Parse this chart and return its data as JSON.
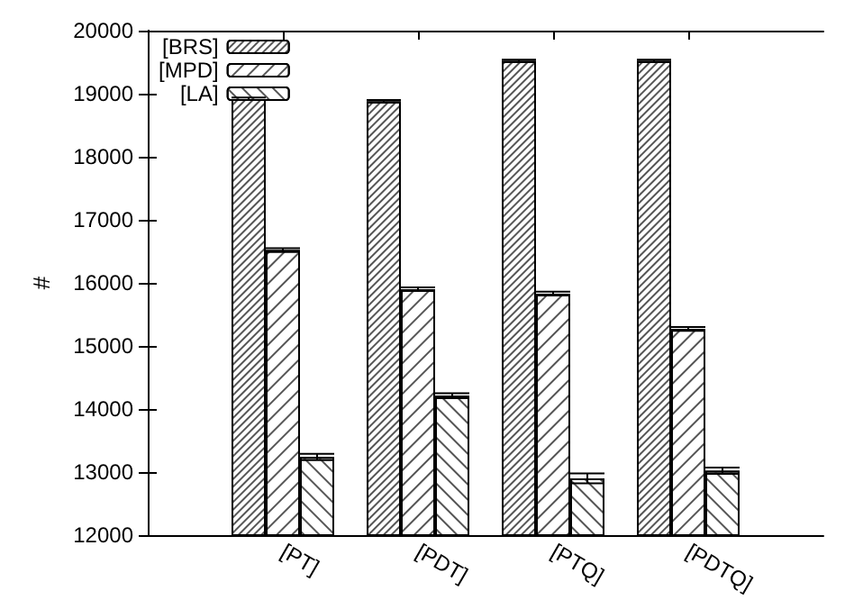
{
  "chart_data": {
    "type": "bar",
    "ylabel": "#",
    "categories": [
      "[PT]",
      "[PDT]",
      "[PTQ]",
      "[PDTQ]"
    ],
    "series": [
      {
        "name": "[BRS]",
        "color": "#ffffff",
        "values": [
          18920,
          18880,
          19520,
          19520
        ],
        "errors": [
          20,
          20,
          20,
          20
        ]
      },
      {
        "name": "[MPD]",
        "color": "#ffffff",
        "values": [
          16520,
          15900,
          15830,
          15270
        ],
        "errors": [
          30,
          30,
          30,
          30
        ]
      },
      {
        "name": "[LA]",
        "color": "#ffffff",
        "values": [
          13240,
          14210,
          12900,
          13020
        ],
        "errors": [
          50,
          40,
          80,
          50
        ]
      }
    ],
    "ylim": [
      12000,
      20000
    ],
    "yticks": [
      12000,
      13000,
      14000,
      15000,
      16000,
      17000,
      18000,
      19000,
      20000
    ],
    "grid": false,
    "legend": "top left"
  }
}
